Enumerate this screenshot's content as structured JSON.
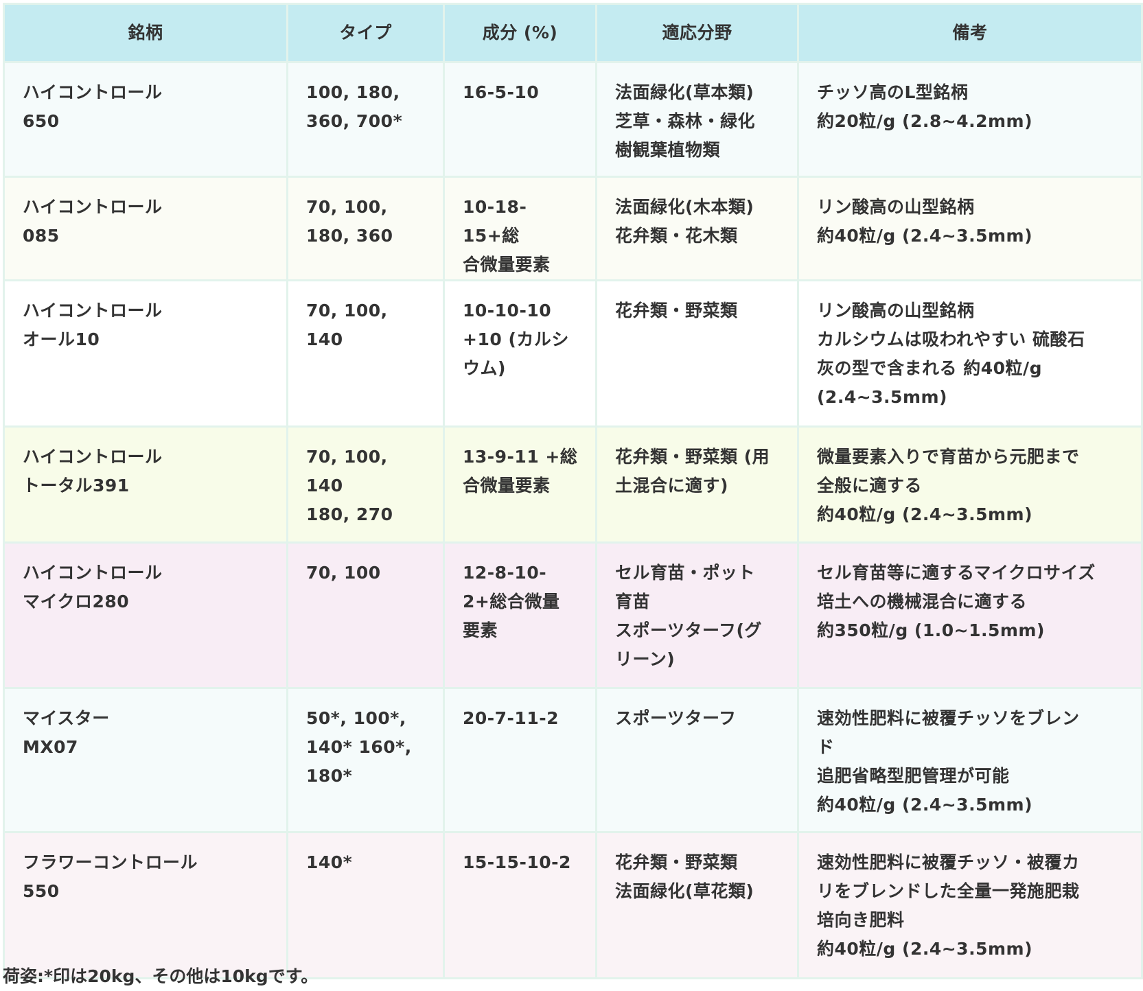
{
  "table": {
    "headers": [
      "銘柄",
      "タイプ",
      "成分 (%)",
      "適応分野",
      "備考"
    ],
    "row_colors": [
      "#f5fbfb",
      "#fbfcf5",
      "#ffffff",
      "#f8fce9",
      "#f8edf5",
      "#f5fbfb",
      "#faf3f6"
    ],
    "header_color": "#c4ebf1",
    "rows": [
      [
        "ハイコントロール\n650",
        "100, 180,\n360, 700*",
        "16-5-10",
        "法面緑化(草本類)\n芝草・森林・緑化\n樹観葉植物類",
        "チッソ高のL型銘柄\n約20粒/g (2.8~4.2mm)"
      ],
      [
        "ハイコントロール\n085",
        "70, 100,\n180, 360",
        "10-18-15+総\n合微量要素",
        "法面緑化(木本類)\n花弁類・花木類",
        "リン酸高の山型銘柄\n約40粒/g (2.4~3.5mm)"
      ],
      [
        "ハイコントロール\nオール10",
        "70, 100, 140",
        "10-10-10\n+10 (カルシ\nウム)",
        "花弁類・野菜類",
        "リン酸高の山型銘柄\nカルシウムは吸われやすい 硫酸石\n灰の型で含まれる 約40粒/g\n(2.4~3.5mm)"
      ],
      [
        "ハイコントロール\nトータル391",
        "70, 100, 140\n180, 270",
        "13-9-11 +総\n合微量要素",
        "花弁類・野菜類 (用\n土混合に適す)",
        "微量要素入りで育苗から元肥まで\n全般に適する\n約40粒/g (2.4~3.5mm)"
      ],
      [
        "ハイコントロール\nマイクロ280",
        "70, 100",
        "12-8-10-\n2+総合微量\n要素",
        "セル育苗・ポット\n育苗\nスポーツターフ(グ\nリーン)",
        "セル育苗等に適するマイクロサイズ\n培土への機械混合に適する\n約350粒/g (1.0~1.5mm)"
      ],
      [
        "マイスター\nMX07",
        "50*, 100*,\n140* 160*,\n180*",
        "20-7-11-2",
        "スポーツターフ",
        "速効性肥料に被覆チッソをブレン\nド\n追肥省略型肥管理が可能\n約40粒/g (2.4~3.5mm)"
      ],
      [
        "フラワーコントロール\n550",
        "140*",
        "15-15-10-2",
        "花弁類・野菜類\n法面緑化(草花類)",
        "速効性肥料に被覆チッソ・被覆カ\nリをブレンドした全量一発施肥栽\n培向き肥料\n約40粒/g (2.4~3.5mm)"
      ]
    ]
  },
  "footer": "荷姿:*印は20kg、その他は10kgです。"
}
